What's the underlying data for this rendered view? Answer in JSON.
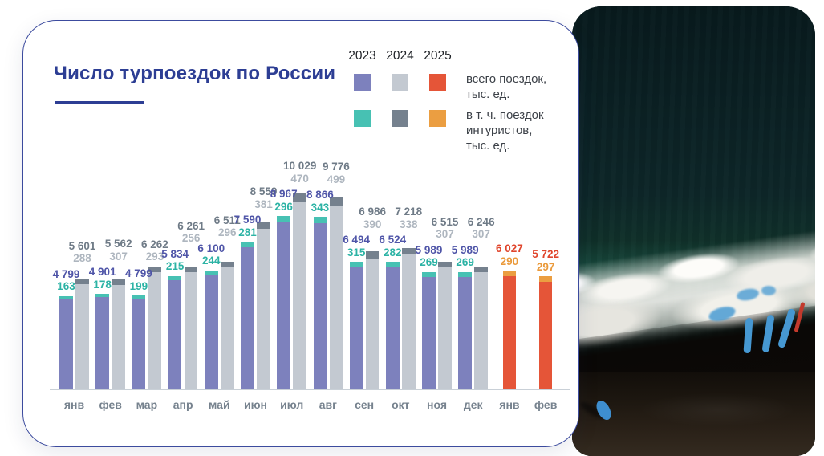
{
  "title": "Число турпоездок по России",
  "legend": {
    "years": [
      "2023",
      "2024",
      "2025"
    ],
    "total_label_lines": [
      "всего поездок,",
      "тыс. ед."
    ],
    "intourist_label_lines": [
      "в т. ч. поездок",
      "интуристов,",
      "тыс. ед."
    ]
  },
  "colors": {
    "accent_title": "#2d3e94",
    "y2023_total": "#7d81bd",
    "y2023_intourist": "#47c1b3",
    "y2024_total": "#c3c9d1",
    "y2024_intourist": "#75818e",
    "y2025_total": "#e55538",
    "y2025_intourist": "#eb9e41",
    "y2023_total_label": "#4f55a8",
    "y2023_intourist_label": "#2cb3a5",
    "y2024_total_label": "#6f7b87",
    "y2024_intourist_label": "#aeb6bf",
    "y2025_total_label": "#e0452c",
    "y2025_intourist_label": "#ea9a3b",
    "month_label": "#76828e",
    "axis_line": "#c9d0d7"
  },
  "chart_data": {
    "type": "bar",
    "title": "Число турпоездок по России",
    "unit": "тыс. ед.",
    "grid": false,
    "legend_position": "top-right",
    "ylim": [
      0,
      10500
    ],
    "value_label_format": "space-thousands",
    "categories": [
      "янв",
      "фев",
      "мар",
      "апр",
      "май",
      "июн",
      "июл",
      "авг",
      "сен",
      "окт",
      "ноя",
      "дек",
      "янв",
      "фев"
    ],
    "series": [
      {
        "name": "2023 всего поездок, тыс. ед.",
        "values": [
          4799,
          4901,
          4799,
          5834,
          6100,
          7590,
          8967,
          8866,
          6494,
          6524,
          5989,
          5989,
          null,
          null
        ]
      },
      {
        "name": "2023 в т. ч. поездок интуристов, тыс. ед.",
        "values": [
          163,
          178,
          199,
          215,
          244,
          281,
          296,
          343,
          315,
          282,
          269,
          269,
          null,
          null
        ]
      },
      {
        "name": "2024 всего поездок, тыс. ед.",
        "values": [
          5601,
          5562,
          6262,
          6261,
          6511,
          8559,
          10029,
          9776,
          6986,
          7218,
          6515,
          6246,
          null,
          null
        ]
      },
      {
        "name": "2024 в т. ч. поездок интуристов, тыс. ед.",
        "values": [
          288,
          307,
          293,
          256,
          296,
          381,
          470,
          499,
          390,
          338,
          307,
          307,
          null,
          null
        ]
      },
      {
        "name": "2025 всего поездок, тыс. ед.",
        "values": [
          null,
          null,
          null,
          null,
          null,
          null,
          null,
          null,
          null,
          null,
          null,
          null,
          6027,
          5722
        ]
      },
      {
        "name": "2025 в т. ч. поездок интуристов, тыс. ед.",
        "values": [
          null,
          null,
          null,
          null,
          null,
          null,
          null,
          null,
          null,
          null,
          null,
          null,
          290,
          297
        ]
      }
    ]
  }
}
